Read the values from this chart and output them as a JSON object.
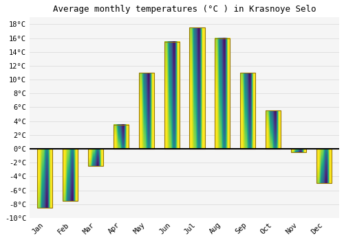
{
  "title": "Average monthly temperatures (°C ) in Krasnoye Selo",
  "months": [
    "Jan",
    "Feb",
    "Mar",
    "Apr",
    "May",
    "Jun",
    "Jul",
    "Aug",
    "Sep",
    "Oct",
    "Nov",
    "Dec"
  ],
  "temperatures": [
    -8.5,
    -7.5,
    -2.5,
    3.5,
    11.0,
    15.5,
    17.5,
    16.0,
    11.0,
    5.5,
    -0.5,
    -5.0
  ],
  "bar_color_top": "#FFB300",
  "bar_color_bottom": "#FF8C00",
  "bar_edge_color": "#888844",
  "background_color": "#FFFFFF",
  "plot_bg_color": "#F5F5F5",
  "grid_color": "#DDDDDD",
  "ylim": [
    -10,
    19
  ],
  "yticks": [
    -10,
    -8,
    -6,
    -4,
    -2,
    0,
    2,
    4,
    6,
    8,
    10,
    12,
    14,
    16,
    18
  ],
  "ytick_labels": [
    "-10°C",
    "-8°C",
    "-6°C",
    "-4°C",
    "-2°C",
    "0°C",
    "2°C",
    "4°C",
    "6°C",
    "8°C",
    "10°C",
    "12°C",
    "14°C",
    "16°C",
    "18°C"
  ],
  "title_fontsize": 9,
  "tick_fontsize": 7.5,
  "bar_width": 0.6
}
